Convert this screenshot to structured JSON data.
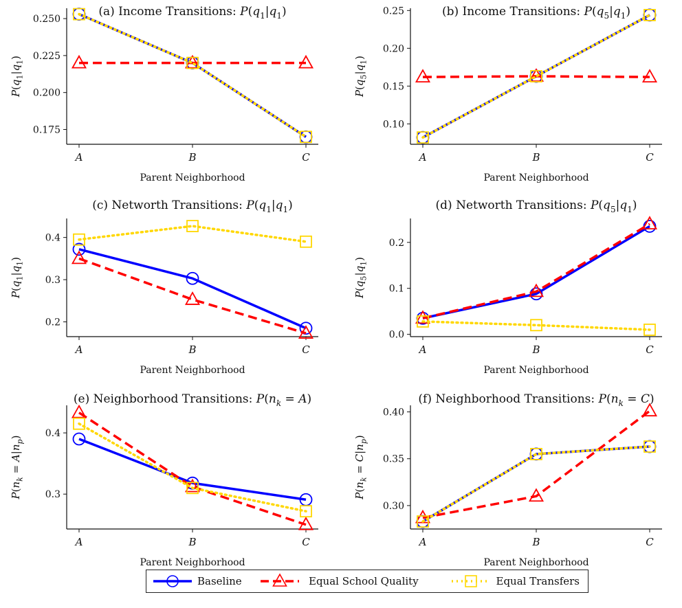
{
  "chart_data": [
    {
      "type": "line",
      "title": "(a) Income Transitions: P(q1|q1)",
      "xlabel": "Parent Neighborhood",
      "ylabel": "P(q1|q1)",
      "categories": [
        "A",
        "B",
        "C"
      ],
      "ylim": [
        0.165,
        0.257
      ],
      "yticks": [
        0.175,
        0.2,
        0.225,
        0.25
      ],
      "ytick_labels": [
        "0.175",
        "0.200",
        "0.225",
        "0.250"
      ],
      "series": [
        {
          "name": "Baseline",
          "values": [
            0.253,
            0.22,
            0.17
          ]
        },
        {
          "name": "Equal School Quality",
          "values": [
            0.22,
            0.22,
            0.22
          ]
        },
        {
          "name": "Equal Transfers",
          "values": [
            0.253,
            0.22,
            0.17
          ]
        }
      ]
    },
    {
      "type": "line",
      "title": "(b) Income Transitions: P(q5|q1)",
      "xlabel": "Parent Neighborhood",
      "ylabel": "P(q5|q1)",
      "categories": [
        "A",
        "B",
        "C"
      ],
      "ylim": [
        0.073,
        0.253
      ],
      "yticks": [
        0.1,
        0.15,
        0.2,
        0.25
      ],
      "ytick_labels": [
        "0.10",
        "0.15",
        "0.20",
        "0.25"
      ],
      "series": [
        {
          "name": "Baseline",
          "values": [
            0.082,
            0.163,
            0.244
          ]
        },
        {
          "name": "Equal School Quality",
          "values": [
            0.162,
            0.163,
            0.162
          ]
        },
        {
          "name": "Equal Transfers",
          "values": [
            0.082,
            0.163,
            0.244
          ]
        }
      ]
    },
    {
      "type": "line",
      "title": "(c) Networth Transitions: P(q1|q1)",
      "xlabel": "Parent Neighborhood",
      "ylabel": "P(q1|q1)",
      "categories": [
        "A",
        "B",
        "C"
      ],
      "ylim": [
        0.165,
        0.445
      ],
      "yticks": [
        0.2,
        0.3,
        0.4
      ],
      "ytick_labels": [
        "0.2",
        "0.3",
        "0.4"
      ],
      "series": [
        {
          "name": "Baseline",
          "values": [
            0.372,
            0.303,
            0.185
          ]
        },
        {
          "name": "Equal School Quality",
          "values": [
            0.35,
            0.253,
            0.173
          ]
        },
        {
          "name": "Equal Transfers",
          "values": [
            0.395,
            0.427,
            0.39
          ]
        }
      ]
    },
    {
      "type": "line",
      "title": "(d) Networth Transitions: P(q5|q1)",
      "xlabel": "Parent Neighborhood",
      "ylabel": "P(q5|q1)",
      "categories": [
        "A",
        "B",
        "C"
      ],
      "ylim": [
        -0.005,
        0.252
      ],
      "yticks": [
        0.0,
        0.1,
        0.2
      ],
      "ytick_labels": [
        "0.0",
        "0.1",
        "0.2"
      ],
      "series": [
        {
          "name": "Baseline",
          "values": [
            0.035,
            0.088,
            0.235
          ]
        },
        {
          "name": "Equal School Quality",
          "values": [
            0.035,
            0.093,
            0.24
          ]
        },
        {
          "name": "Equal Transfers",
          "values": [
            0.028,
            0.02,
            0.01
          ]
        }
      ]
    },
    {
      "type": "line",
      "title": "(e) Neighborhood Transitions: P(nk = A)",
      "xlabel": "Parent Neighborhood",
      "ylabel": "P(nk = A|np)",
      "categories": [
        "A",
        "B",
        "C"
      ],
      "ylim": [
        0.243,
        0.445
      ],
      "yticks": [
        0.3,
        0.4
      ],
      "ytick_labels": [
        "0.3",
        "0.4"
      ],
      "series": [
        {
          "name": "Baseline",
          "values": [
            0.39,
            0.318,
            0.291
          ]
        },
        {
          "name": "Equal School Quality",
          "values": [
            0.433,
            0.312,
            0.25
          ]
        },
        {
          "name": "Equal Transfers",
          "values": [
            0.415,
            0.31,
            0.272
          ]
        }
      ]
    },
    {
      "type": "line",
      "title": "(f) Neighborhood Transitions: P(nk = C)",
      "xlabel": "Parent Neighborhood",
      "ylabel": "P(nk = C|np)",
      "categories": [
        "A",
        "B",
        "C"
      ],
      "ylim": [
        0.275,
        0.407
      ],
      "yticks": [
        0.3,
        0.35,
        0.4
      ],
      "ytick_labels": [
        "0.30",
        "0.35",
        "0.40"
      ],
      "series": [
        {
          "name": "Baseline",
          "values": [
            0.283,
            0.355,
            0.363
          ]
        },
        {
          "name": "Equal School Quality",
          "values": [
            0.287,
            0.31,
            0.401
          ]
        },
        {
          "name": "Equal Transfers",
          "values": [
            0.283,
            0.355,
            0.363
          ]
        }
      ]
    }
  ],
  "legend": {
    "placement": "bottom-center",
    "items": [
      {
        "label": "Baseline",
        "color": "#0000ff",
        "marker": "circle",
        "linestyle": "solid"
      },
      {
        "label": "Equal School Quality",
        "color": "#ff0000",
        "marker": "triangle",
        "linestyle": "dashed"
      },
      {
        "label": "Equal Transfers",
        "color": "#ffd700",
        "marker": "square",
        "linestyle": "dotted"
      }
    ]
  }
}
